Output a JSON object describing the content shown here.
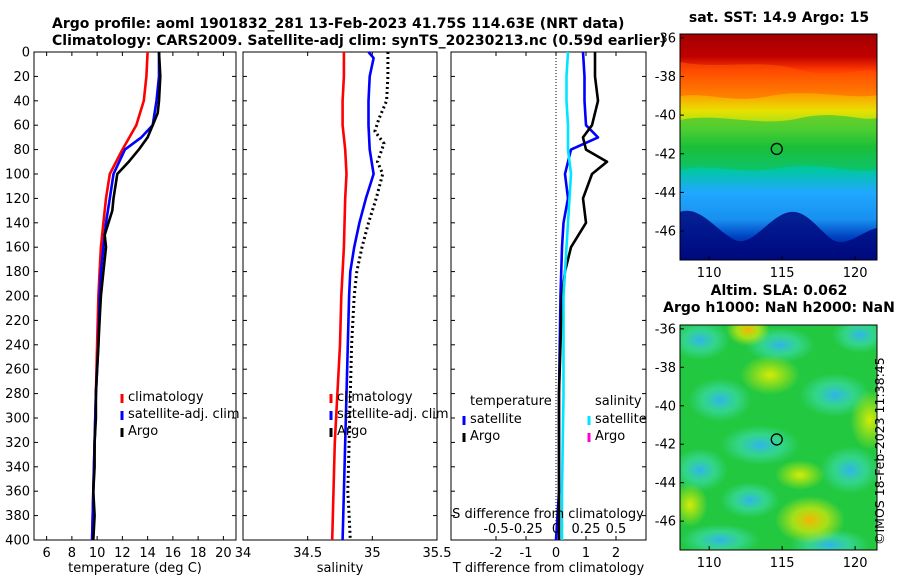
{
  "header": {
    "line1": "Argo profile: aoml 1901832_281 13-Feb-2023 41.75S 114.63E (NRT data)",
    "line2": "Climatology: CARS2009. Satellite-adj clim: synTS_20230213.nc (0.59d earlier)"
  },
  "stamp": "©IMOS 18-Feb-2023 11:38:45",
  "chart_data": [
    {
      "type": "line",
      "name": "temperature-panel",
      "xlabel": "temperature (deg C)",
      "ylabel": "",
      "xlim": [
        5,
        21
      ],
      "ylim": [
        400,
        0
      ],
      "xticks": [
        6,
        8,
        10,
        12,
        14,
        16,
        18,
        20
      ],
      "yticks": [
        0,
        20,
        40,
        60,
        80,
        100,
        120,
        140,
        160,
        180,
        200,
        220,
        240,
        260,
        280,
        300,
        320,
        340,
        360,
        380,
        400
      ],
      "series": [
        {
          "name": "climatology",
          "color": "#ff0000",
          "points": [
            [
              14.0,
              0
            ],
            [
              13.9,
              20
            ],
            [
              13.7,
              40
            ],
            [
              13.1,
              60
            ],
            [
              12.0,
              80
            ],
            [
              11.0,
              100
            ],
            [
              10.7,
              120
            ],
            [
              10.5,
              140
            ],
            [
              10.3,
              160
            ],
            [
              10.2,
              180
            ],
            [
              10.1,
              200
            ],
            [
              10.0,
              240
            ],
            [
              9.9,
              280
            ],
            [
              9.8,
              320
            ],
            [
              9.7,
              360
            ],
            [
              9.6,
              400
            ]
          ]
        },
        {
          "name": "satellite-adj. clim",
          "color": "#0000ff",
          "points": [
            [
              14.9,
              0
            ],
            [
              14.9,
              20
            ],
            [
              14.7,
              40
            ],
            [
              14.4,
              60
            ],
            [
              13.5,
              70
            ],
            [
              12.2,
              80
            ],
            [
              11.3,
              100
            ],
            [
              11.0,
              120
            ],
            [
              10.7,
              140
            ],
            [
              10.5,
              160
            ],
            [
              10.3,
              180
            ],
            [
              10.2,
              200
            ],
            [
              10.1,
              240
            ],
            [
              9.9,
              280
            ],
            [
              9.8,
              320
            ],
            [
              9.7,
              360
            ],
            [
              9.6,
              400
            ]
          ]
        },
        {
          "name": "Argo",
          "color": "#000000",
          "points": [
            [
              14.9,
              0
            ],
            [
              15.0,
              20
            ],
            [
              14.9,
              40
            ],
            [
              14.8,
              50
            ],
            [
              14.4,
              60
            ],
            [
              14.0,
              70
            ],
            [
              13.3,
              80
            ],
            [
              12.5,
              90
            ],
            [
              11.6,
              100
            ],
            [
              11.3,
              120
            ],
            [
              11.2,
              130
            ],
            [
              10.9,
              140
            ],
            [
              10.6,
              150
            ],
            [
              10.7,
              160
            ],
            [
              10.5,
              180
            ],
            [
              10.3,
              200
            ],
            [
              10.2,
              220
            ],
            [
              10.1,
              240
            ],
            [
              10.0,
              260
            ],
            [
              9.9,
              280
            ],
            [
              9.9,
              300
            ],
            [
              9.8,
              320
            ],
            [
              9.8,
              340
            ],
            [
              9.7,
              360
            ],
            [
              9.8,
              380
            ],
            [
              9.7,
              400
            ]
          ]
        }
      ],
      "legend": [
        "climatology",
        "satellite-adj. clim",
        "Argo"
      ]
    },
    {
      "type": "line",
      "name": "salinity-panel",
      "xlabel": "salinity",
      "ylabel": "",
      "xlim": [
        34,
        35.5
      ],
      "ylim": [
        400,
        0
      ],
      "xticks": [
        34,
        34.5,
        35,
        35.5
      ],
      "series": [
        {
          "name": "climatology",
          "color": "#ff0000",
          "points": [
            [
              34.78,
              0
            ],
            [
              34.78,
              20
            ],
            [
              34.77,
              40
            ],
            [
              34.77,
              60
            ],
            [
              34.79,
              80
            ],
            [
              34.8,
              100
            ],
            [
              34.79,
              120
            ],
            [
              34.78,
              160
            ],
            [
              34.76,
              200
            ],
            [
              34.75,
              240
            ],
            [
              34.73,
              280
            ],
            [
              34.71,
              320
            ],
            [
              34.7,
              360
            ],
            [
              34.69,
              400
            ]
          ]
        },
        {
          "name": "satellite-adj. clim",
          "color": "#0000ff",
          "points": [
            [
              34.97,
              0
            ],
            [
              35.01,
              5
            ],
            [
              34.98,
              20
            ],
            [
              34.97,
              40
            ],
            [
              34.97,
              60
            ],
            [
              34.98,
              80
            ],
            [
              35.01,
              100
            ],
            [
              34.95,
              120
            ],
            [
              34.9,
              140
            ],
            [
              34.86,
              160
            ],
            [
              34.83,
              180
            ],
            [
              34.82,
              200
            ],
            [
              34.81,
              240
            ],
            [
              34.8,
              280
            ],
            [
              34.79,
              320
            ],
            [
              34.78,
              360
            ],
            [
              34.77,
              400
            ]
          ]
        },
        {
          "name": "Argo",
          "color": "#000000",
          "dashed": true,
          "points": [
            [
              35.12,
              0
            ],
            [
              35.12,
              20
            ],
            [
              35.11,
              40
            ],
            [
              35.05,
              55
            ],
            [
              35.02,
              65
            ],
            [
              35.09,
              75
            ],
            [
              35.04,
              90
            ],
            [
              35.08,
              100
            ],
            [
              35.03,
              120
            ],
            [
              34.97,
              140
            ],
            [
              34.92,
              160
            ],
            [
              34.88,
              180
            ],
            [
              34.86,
              200
            ],
            [
              34.84,
              240
            ],
            [
              34.83,
              280
            ],
            [
              34.82,
              320
            ],
            [
              34.81,
              360
            ],
            [
              34.82,
              380
            ],
            [
              34.83,
              400
            ]
          ]
        }
      ],
      "legend": [
        "climatology",
        "satellite-adj. clim",
        "Argo"
      ]
    },
    {
      "type": "line",
      "name": "difference-panel",
      "xlabel": "T difference from climatology",
      "ylabel": "",
      "xlim": [
        -3.5,
        3
      ],
      "ylim": [
        400,
        0
      ],
      "xticks": [
        -2,
        -1,
        0,
        1,
        2
      ],
      "secondary_axis": {
        "label": "S difference from climatology",
        "ticks": [
          "-0.5",
          "-0.25",
          "0",
          "0.25",
          "0.5"
        ],
        "tick_values": [
          -0.5,
          -0.25,
          0,
          0.25,
          0.5
        ],
        "scale_T_per_S": 4
      },
      "zero_line": 0,
      "series": [
        {
          "name": "T satellite",
          "color": "#0000ff",
          "points": [
            [
              0.9,
              0
            ],
            [
              0.95,
              20
            ],
            [
              0.95,
              40
            ],
            [
              1.0,
              60
            ],
            [
              1.4,
              70
            ],
            [
              0.5,
              80
            ],
            [
              0.3,
              100
            ],
            [
              0.4,
              120
            ],
            [
              0.25,
              140
            ],
            [
              0.2,
              160
            ],
            [
              0.15,
              200
            ],
            [
              0.1,
              280
            ],
            [
              0.1,
              360
            ],
            [
              0.0,
              400
            ]
          ]
        },
        {
          "name": "T Argo",
          "color": "#000000",
          "points": [
            [
              1.3,
              0
            ],
            [
              1.3,
              20
            ],
            [
              1.4,
              40
            ],
            [
              1.2,
              60
            ],
            [
              0.9,
              70
            ],
            [
              1.0,
              80
            ],
            [
              1.7,
              90
            ],
            [
              1.2,
              100
            ],
            [
              0.9,
              120
            ],
            [
              1.0,
              140
            ],
            [
              0.5,
              160
            ],
            [
              0.3,
              180
            ],
            [
              0.2,
              200
            ],
            [
              0.15,
              240
            ],
            [
              0.1,
              280
            ],
            [
              0.1,
              320
            ],
            [
              0.1,
              360
            ],
            [
              0.1,
              400
            ]
          ]
        },
        {
          "name": "S satellite",
          "color": "#00e5ff",
          "points": [
            [
              0.4,
              0
            ],
            [
              0.35,
              20
            ],
            [
              0.35,
              40
            ],
            [
              0.4,
              60
            ],
            [
              0.4,
              80
            ],
            [
              0.5,
              100
            ],
            [
              0.45,
              120
            ],
            [
              0.4,
              140
            ],
            [
              0.35,
              160
            ],
            [
              0.3,
              180
            ],
            [
              0.25,
              200
            ],
            [
              0.25,
              280
            ],
            [
              0.2,
              360
            ],
            [
              0.2,
              400
            ]
          ]
        }
      ],
      "legend_left": {
        "title": "temperature",
        "items": [
          "satellite",
          "Argo"
        ]
      },
      "legend_right": {
        "title": "salinity",
        "items": [
          "satellite",
          "Argo"
        ]
      }
    },
    {
      "type": "heatmap",
      "name": "sst-map",
      "title": "sat. SST: 14.9 Argo: 15",
      "xlim": [
        108,
        121.5
      ],
      "ylim": [
        -47.5,
        -35.8
      ],
      "xticks": [
        110,
        115,
        120
      ],
      "yticks": [
        -36,
        -38,
        -40,
        -42,
        -44,
        -46
      ],
      "marker": {
        "lon": 114.63,
        "lat": -41.75
      }
    },
    {
      "type": "heatmap",
      "name": "sla-map",
      "title_line1": "Altim. SLA: 0.062",
      "title_line2": "Argo h1000: NaN h2000: NaN",
      "xlim": [
        108,
        121.5
      ],
      "ylim": [
        -47.5,
        -35.8
      ],
      "xticks": [
        110,
        115,
        120
      ],
      "yticks": [
        -36,
        -38,
        -40,
        -42,
        -44,
        -46
      ],
      "marker": {
        "lon": 114.63,
        "lat": -41.75
      }
    }
  ]
}
